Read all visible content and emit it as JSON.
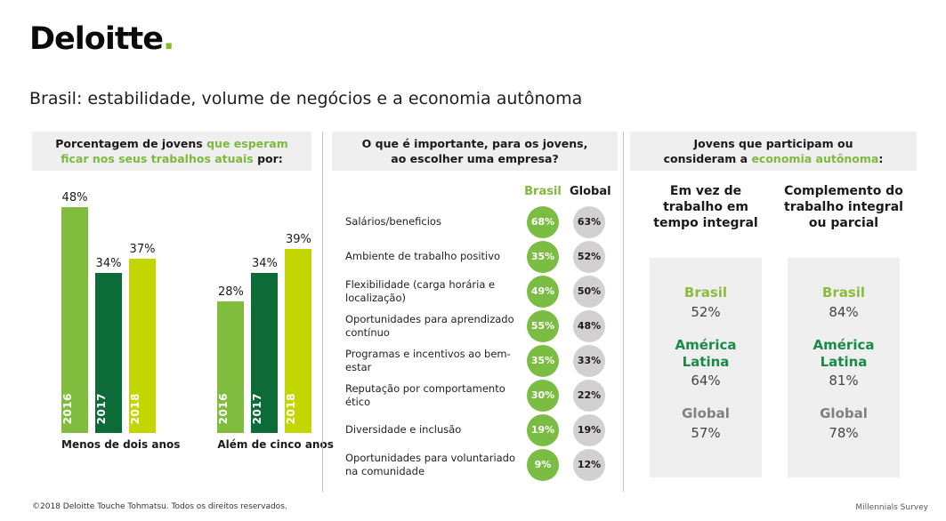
{
  "brand": {
    "logo_text": "Deloitte",
    "logo_dot": ".",
    "dot_color": "#86BC25"
  },
  "page_title": "Brasil: estabilidade, volume de negócios e a economia autônoma",
  "left_panel": {
    "header": {
      "part1": "Porcentagem de jovens ",
      "highlight": "que esperam\nficar nos seus trabalhos atuais",
      "part2": " por:"
    },
    "bar_colors": {
      "2016": "#80BC3E",
      "2017": "#0C6B37",
      "2018": "#C3D600"
    },
    "groups": [
      {
        "label": "Menos de dois anos",
        "bars": [
          {
            "year": "2016",
            "value": 48
          },
          {
            "year": "2017",
            "value": 34
          },
          {
            "year": "2018",
            "value": 37
          }
        ]
      },
      {
        "label": "Além de cinco anos",
        "bars": [
          {
            "year": "2016",
            "value": 28
          },
          {
            "year": "2017",
            "value": 34
          },
          {
            "year": "2018",
            "value": 39
          }
        ]
      }
    ],
    "value_suffix": "%"
  },
  "middle_panel": {
    "header": "O que é importante, para os jovens,\nao escolher uma empresa?",
    "columns": {
      "brasil": "Brasil",
      "global": "Global"
    },
    "rows": [
      {
        "label": "Salários/beneficios",
        "brasil": "68%",
        "global": "63%"
      },
      {
        "label": "Ambiente de trabalho positivo",
        "brasil": "35%",
        "global": "52%"
      },
      {
        "label": "Flexibilidade (carga horária e\nlocalização)",
        "brasil": "49%",
        "global": "50%"
      },
      {
        "label": "Oportunidades para aprendizado\ncontínuo",
        "brasil": "55%",
        "global": "48%"
      },
      {
        "label": "Programas e incentivos ao bem-estar",
        "brasil": "35%",
        "global": "33%"
      },
      {
        "label": "Reputação por comportamento ético",
        "brasil": "30%",
        "global": "22%"
      },
      {
        "label": "Diversidade e inclusão",
        "brasil": "19%",
        "global": "19%"
      },
      {
        "label": "Oportunidades para voluntariado\nna comunidade",
        "brasil": "9%",
        "global": "12%"
      }
    ]
  },
  "right_panel": {
    "header": {
      "part1": "Jovens que participam ou\nconsideram a ",
      "highlight": "economia autônoma",
      "part2": ":"
    },
    "columns": [
      {
        "title": "Em vez de\ntrabalho em\ntempo integral",
        "entries": [
          {
            "region": "Brasil",
            "value": "52%",
            "color": "#8ABD3F"
          },
          {
            "region": "América\nLatina",
            "value": "64%",
            "color": "#1B8A47"
          },
          {
            "region": "Global",
            "value": "57%",
            "color": "#808080"
          }
        ]
      },
      {
        "title": "Complemento do\ntrabalho integral\nou parcial",
        "entries": [
          {
            "region": "Brasil",
            "value": "84%",
            "color": "#8ABD3F"
          },
          {
            "region": "América\nLatina",
            "value": "81%",
            "color": "#1B8A47"
          },
          {
            "region": "Global",
            "value": "78%",
            "color": "#808080"
          }
        ]
      }
    ]
  },
  "footer": {
    "copyright": "©2018 Deloitte Touche Tohmatsu. Todos os direitos reservados.",
    "survey": "Millennials Survey"
  },
  "chart_data": [
    {
      "type": "bar",
      "title": "Porcentagem de jovens que esperam ficar nos seus trabalhos atuais por:",
      "categories": [
        "Menos de dois anos",
        "Além de cinco anos"
      ],
      "series": [
        {
          "name": "2016",
          "values": [
            48,
            28
          ],
          "color": "#80BC3E"
        },
        {
          "name": "2017",
          "values": [
            34,
            34
          ],
          "color": "#0C6B37"
        },
        {
          "name": "2018",
          "values": [
            37,
            39
          ],
          "color": "#C3D600"
        }
      ],
      "value_suffix": "%",
      "ylim": [
        0,
        50
      ],
      "grid": false,
      "legend": "bars-labeled-inside"
    },
    {
      "type": "table",
      "title": "O que é importante, para os jovens, ao escolher uma empresa?",
      "columns": [
        "Brasil",
        "Global"
      ],
      "rows": [
        [
          "Salários/beneficios",
          68,
          63
        ],
        [
          "Ambiente de trabalho positivo",
          35,
          52
        ],
        [
          "Flexibilidade (carga horária e localização)",
          49,
          50
        ],
        [
          "Oportunidades para aprendizado contínuo",
          55,
          48
        ],
        [
          "Programas e incentivos ao bem-estar",
          35,
          33
        ],
        [
          "Reputação por comportamento ético",
          30,
          22
        ],
        [
          "Diversidade e inclusão",
          19,
          19
        ],
        [
          "Oportunidades para voluntariado na comunidade",
          9,
          12
        ]
      ],
      "value_suffix": "%"
    },
    {
      "type": "table",
      "title": "Jovens que participam ou consideram a economia autônoma:",
      "columns": [
        "Em vez de trabalho em tempo integral",
        "Complemento do trabalho integral ou parcial"
      ],
      "rows": [
        [
          "Brasil",
          52,
          84
        ],
        [
          "América Latina",
          64,
          81
        ],
        [
          "Global",
          57,
          78
        ]
      ],
      "value_suffix": "%"
    }
  ]
}
